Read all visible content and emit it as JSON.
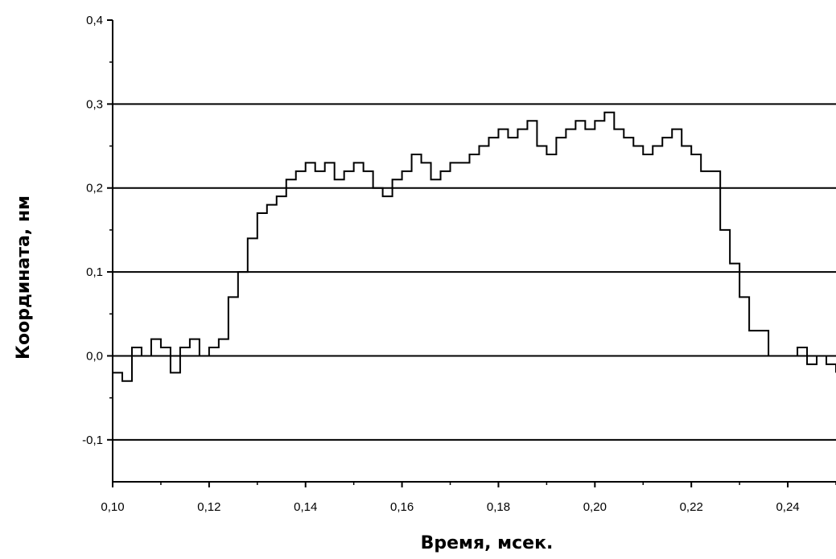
{
  "chart_data": {
    "type": "line",
    "xlabel": "Время, мсек.",
    "ylabel": "Координата, нм",
    "xlim": [
      0.1,
      0.25
    ],
    "ylim": [
      -0.15,
      0.4
    ],
    "x_ticks": [
      "0,10",
      "0,12",
      "0,14",
      "0,16",
      "0,18",
      "0,20",
      "0,22",
      "0,24"
    ],
    "y_ticks": [
      "-0,1",
      "0,0",
      "0,1",
      "0,2",
      "0,3",
      "0,4"
    ],
    "x_tick_values": [
      0.1,
      0.12,
      0.14,
      0.16,
      0.18,
      0.2,
      0.22,
      0.24
    ],
    "y_tick_values": [
      -0.1,
      0.0,
      0.1,
      0.2,
      0.3,
      0.4
    ],
    "grid": "horizontal",
    "line_color": "#000000",
    "series": [
      {
        "x": [
          0.1,
          0.102,
          0.104,
          0.106,
          0.108,
          0.11,
          0.112,
          0.114,
          0.116,
          0.118,
          0.12,
          0.122,
          0.124,
          0.126,
          0.128,
          0.13,
          0.132,
          0.134,
          0.136,
          0.138,
          0.14,
          0.142,
          0.144,
          0.146,
          0.148,
          0.15,
          0.152,
          0.154,
          0.156,
          0.158,
          0.16,
          0.162,
          0.164,
          0.166,
          0.168,
          0.17,
          0.172,
          0.174,
          0.176,
          0.178,
          0.18,
          0.182,
          0.184,
          0.186,
          0.188,
          0.19,
          0.192,
          0.194,
          0.196,
          0.198,
          0.2,
          0.202,
          0.204,
          0.206,
          0.208,
          0.21,
          0.212,
          0.214,
          0.216,
          0.218,
          0.22,
          0.222,
          0.224,
          0.226,
          0.228,
          0.23,
          0.232,
          0.234,
          0.236,
          0.238,
          0.24,
          0.242,
          0.244,
          0.246,
          0.248,
          0.25
        ],
        "y": [
          -0.02,
          -0.03,
          0.01,
          0.0,
          0.02,
          0.01,
          -0.02,
          0.01,
          0.02,
          0.0,
          0.01,
          0.02,
          0.07,
          0.1,
          0.14,
          0.17,
          0.18,
          0.19,
          0.21,
          0.22,
          0.23,
          0.22,
          0.23,
          0.21,
          0.22,
          0.23,
          0.22,
          0.2,
          0.19,
          0.21,
          0.22,
          0.24,
          0.23,
          0.21,
          0.22,
          0.23,
          0.23,
          0.24,
          0.25,
          0.26,
          0.27,
          0.26,
          0.27,
          0.28,
          0.25,
          0.24,
          0.26,
          0.27,
          0.28,
          0.27,
          0.28,
          0.29,
          0.27,
          0.26,
          0.25,
          0.24,
          0.25,
          0.26,
          0.27,
          0.25,
          0.24,
          0.22,
          0.22,
          0.15,
          0.11,
          0.07,
          0.03,
          0.03,
          0.0,
          0.0,
          0.0,
          0.01,
          -0.01,
          0.0,
          -0.01,
          -0.02
        ]
      }
    ]
  }
}
